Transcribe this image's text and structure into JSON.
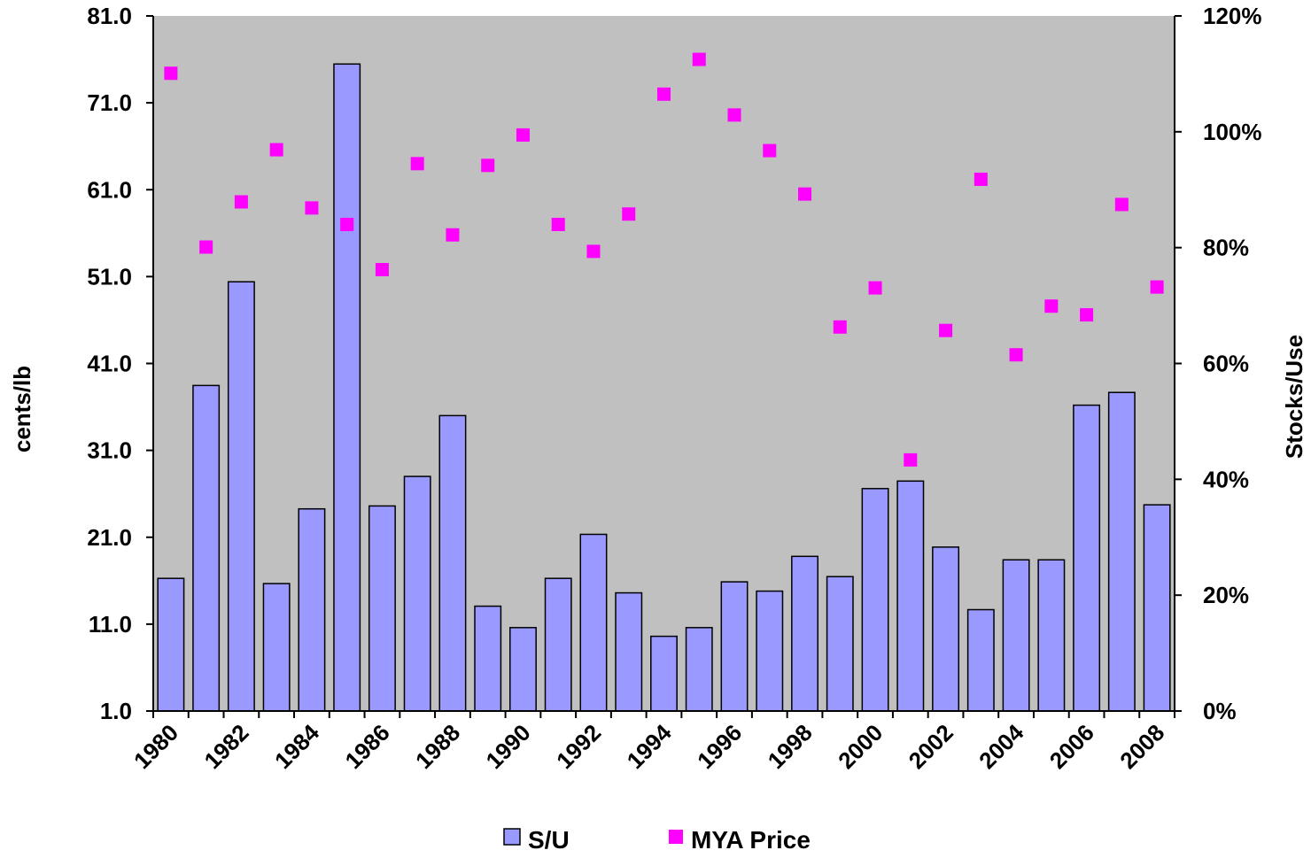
{
  "chart_data": {
    "type": "bar",
    "x": [
      1980,
      1981,
      1982,
      1983,
      1984,
      1985,
      1986,
      1987,
      1988,
      1989,
      1990,
      1991,
      1992,
      1993,
      1994,
      1995,
      1996,
      1997,
      1998,
      1999,
      2000,
      2001,
      2002,
      2003,
      2004,
      2005,
      2006,
      2007,
      2008
    ],
    "x_tick_labels": [
      "1980",
      "1982",
      "1984",
      "1986",
      "1988",
      "1990",
      "1992",
      "1994",
      "1996",
      "1998",
      "2000",
      "2002",
      "2004",
      "2006",
      "2008"
    ],
    "y_left": {
      "label": "cents/lb",
      "lim": [
        1.0,
        81.0
      ],
      "ticks": [
        "1.0",
        "11.0",
        "21.0",
        "31.0",
        "41.0",
        "51.0",
        "61.0",
        "71.0",
        "81.0"
      ]
    },
    "y_right": {
      "label": "Stocks/Use",
      "lim": [
        0,
        120
      ],
      "ticks": [
        "0%",
        "20%",
        "40%",
        "60%",
        "80%",
        "100%",
        "120%"
      ]
    },
    "plot_background": "#c0c0c0",
    "legend_position": "bottom",
    "series": [
      {
        "name": "S/U",
        "type": "bar",
        "axis": "right",
        "unit": "%",
        "color": "#9999ff",
        "values": [
          22.9,
          56.2,
          74.1,
          22.0,
          34.9,
          111.7,
          35.4,
          40.5,
          51.0,
          18.1,
          14.4,
          22.9,
          30.5,
          20.4,
          12.9,
          14.4,
          22.3,
          20.7,
          26.7,
          23.2,
          38.4,
          39.7,
          28.3,
          17.5,
          26.1,
          26.1,
          52.8,
          55.0,
          35.6
        ]
      },
      {
        "name": "MYA Price",
        "type": "scatter",
        "axis": "left",
        "unit": "cents/lb",
        "color": "#ff00ff",
        "values": [
          74.4,
          54.4,
          59.6,
          65.6,
          58.9,
          57.0,
          51.8,
          64.0,
          55.8,
          63.8,
          67.3,
          57.0,
          53.9,
          58.2,
          72.0,
          76.0,
          69.6,
          65.5,
          60.5,
          45.2,
          49.7,
          29.9,
          44.8,
          62.2,
          42.0,
          47.6,
          46.6,
          59.3,
          49.8
        ]
      }
    ]
  }
}
